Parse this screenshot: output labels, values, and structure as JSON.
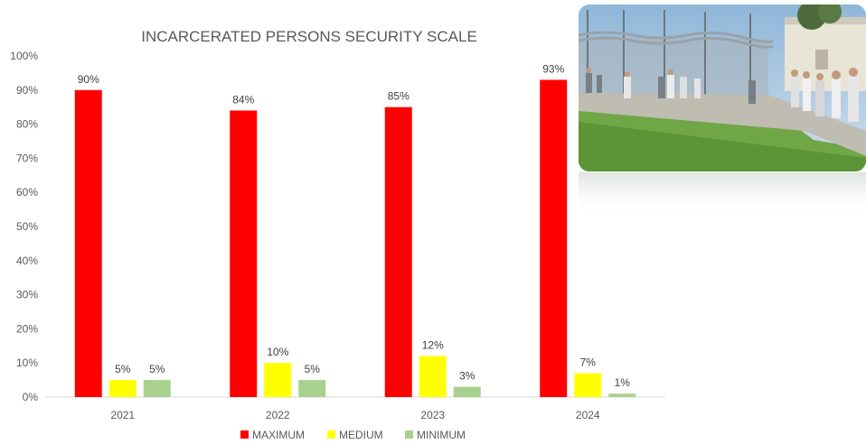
{
  "chart_data": {
    "type": "bar",
    "title": "INCARCERATED PERSONS SECURITY SCALE",
    "categories": [
      "2021",
      "2022",
      "2023",
      "2024"
    ],
    "series": [
      {
        "name": "MAXIMUM",
        "color": "#ff0000",
        "values": [
          90,
          84,
          85,
          93
        ],
        "labels": [
          "90%",
          "84%",
          "85%",
          "93%"
        ]
      },
      {
        "name": "MEDIUM",
        "color": "#ffff00",
        "values": [
          5,
          10,
          12,
          7
        ],
        "labels": [
          "5%",
          "10%",
          "12%",
          "7%"
        ]
      },
      {
        "name": "MINIMUM",
        "color": "#a9d18e",
        "values": [
          5,
          5,
          3,
          1
        ],
        "labels": [
          "5%",
          "5%",
          "3%",
          "1%"
        ]
      }
    ],
    "ylim": [
      0,
      100
    ],
    "yticks": [
      "0%",
      "10%",
      "20%",
      "30%",
      "40%",
      "50%",
      "60%",
      "70%",
      "80%",
      "90%",
      "100%"
    ],
    "grid": false,
    "legend": "bottom"
  },
  "photo": {
    "subject": "prison yard with chain-link fence and inmates walking"
  }
}
